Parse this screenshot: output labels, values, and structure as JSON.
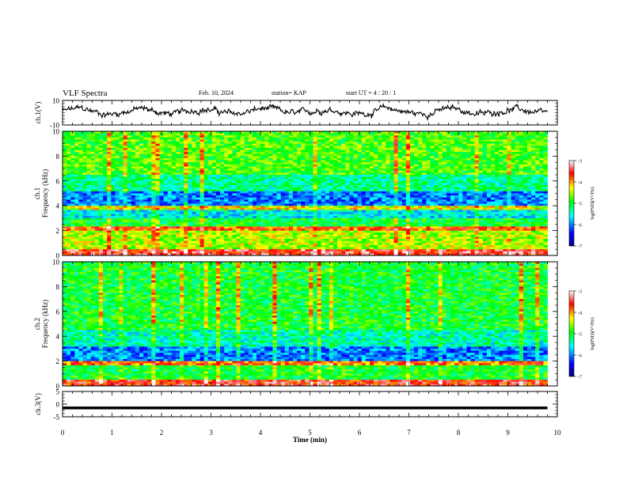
{
  "header": {
    "title": "VLF Spectra",
    "date": "Feb. 10, 2024",
    "station": "station= KAP",
    "start_ut": "start  UT  =   4 : 20 : 1"
  },
  "colorbar": {
    "label": "log(PSD)(V²/Hz)",
    "ticks": [
      "-3",
      "-4",
      "-5",
      "-6",
      "-7"
    ],
    "range": [
      -7,
      -3
    ],
    "colors": [
      "#000080",
      "#0000ff",
      "#00ffff",
      "#00ff00",
      "#ffff00",
      "#ff0000",
      "#ffffff"
    ]
  },
  "chart_data": [
    {
      "type": "line",
      "ylabel": "ch.1(V)",
      "xlim": [
        0,
        10
      ],
      "ylim": [
        -10,
        10
      ],
      "yticks": [
        "10",
        "-10"
      ],
      "series": [
        {
          "x_range": [
            0,
            9.8
          ],
          "level": 1,
          "fluctuation": 5
        }
      ],
      "color": "#000000"
    },
    {
      "type": "heatmap",
      "ylabel": "ch.1 Frequency (kHz)",
      "xlim": [
        0,
        10
      ],
      "ylim": [
        0,
        10
      ],
      "yticks": [
        "0",
        "2",
        "4",
        "6",
        "8",
        "10"
      ],
      "x_data_extent": 9.8,
      "bands": [
        {
          "from": 0,
          "to": 0.5,
          "log_psd": -3.5
        },
        {
          "from": 0.5,
          "to": 2.0,
          "log_psd": -4.5
        },
        {
          "from": 2.0,
          "to": 2.3,
          "log_psd": -3.8
        },
        {
          "from": 2.3,
          "to": 3.0,
          "log_psd": -5.0
        },
        {
          "from": 3.0,
          "to": 3.7,
          "log_psd": -5.6
        },
        {
          "from": 3.7,
          "to": 4.0,
          "log_psd": -4.3
        },
        {
          "from": 4.0,
          "to": 5.2,
          "log_psd": -6.0
        },
        {
          "from": 5.2,
          "to": 6.5,
          "log_psd": -5.3
        },
        {
          "from": 6.5,
          "to": 10.0,
          "log_psd": -4.8
        }
      ]
    },
    {
      "type": "heatmap",
      "ylabel": "ch.2 Frequency (kHz)",
      "xlim": [
        0,
        10
      ],
      "ylim": [
        0,
        10
      ],
      "yticks": [
        "0",
        "2",
        "4",
        "6",
        "8",
        "10"
      ],
      "x_data_extent": 9.8,
      "bands": [
        {
          "from": 0,
          "to": 0.5,
          "log_psd": -3.6
        },
        {
          "from": 0.5,
          "to": 1.7,
          "log_psd": -5.0
        },
        {
          "from": 1.7,
          "to": 2.0,
          "log_psd": -3.9
        },
        {
          "from": 2.0,
          "to": 3.2,
          "log_psd": -6.0
        },
        {
          "from": 3.2,
          "to": 4.5,
          "log_psd": -5.4
        },
        {
          "from": 4.5,
          "to": 10.0,
          "log_psd": -5.0
        }
      ]
    },
    {
      "type": "line",
      "ylabel": "ch.3(V)",
      "xlabel": "Time (min)",
      "xlim": [
        0,
        10
      ],
      "ylim": [
        -5,
        5
      ],
      "yticks": [
        "5",
        "0",
        "-5"
      ],
      "xticks": [
        "0",
        "1",
        "2",
        "3",
        "4",
        "5",
        "6",
        "7",
        "8",
        "9",
        "10"
      ],
      "series": [
        {
          "x_range": [
            0,
            9.8
          ],
          "level": -1.5,
          "thickness": 1.1
        }
      ],
      "color": "#000000"
    }
  ]
}
